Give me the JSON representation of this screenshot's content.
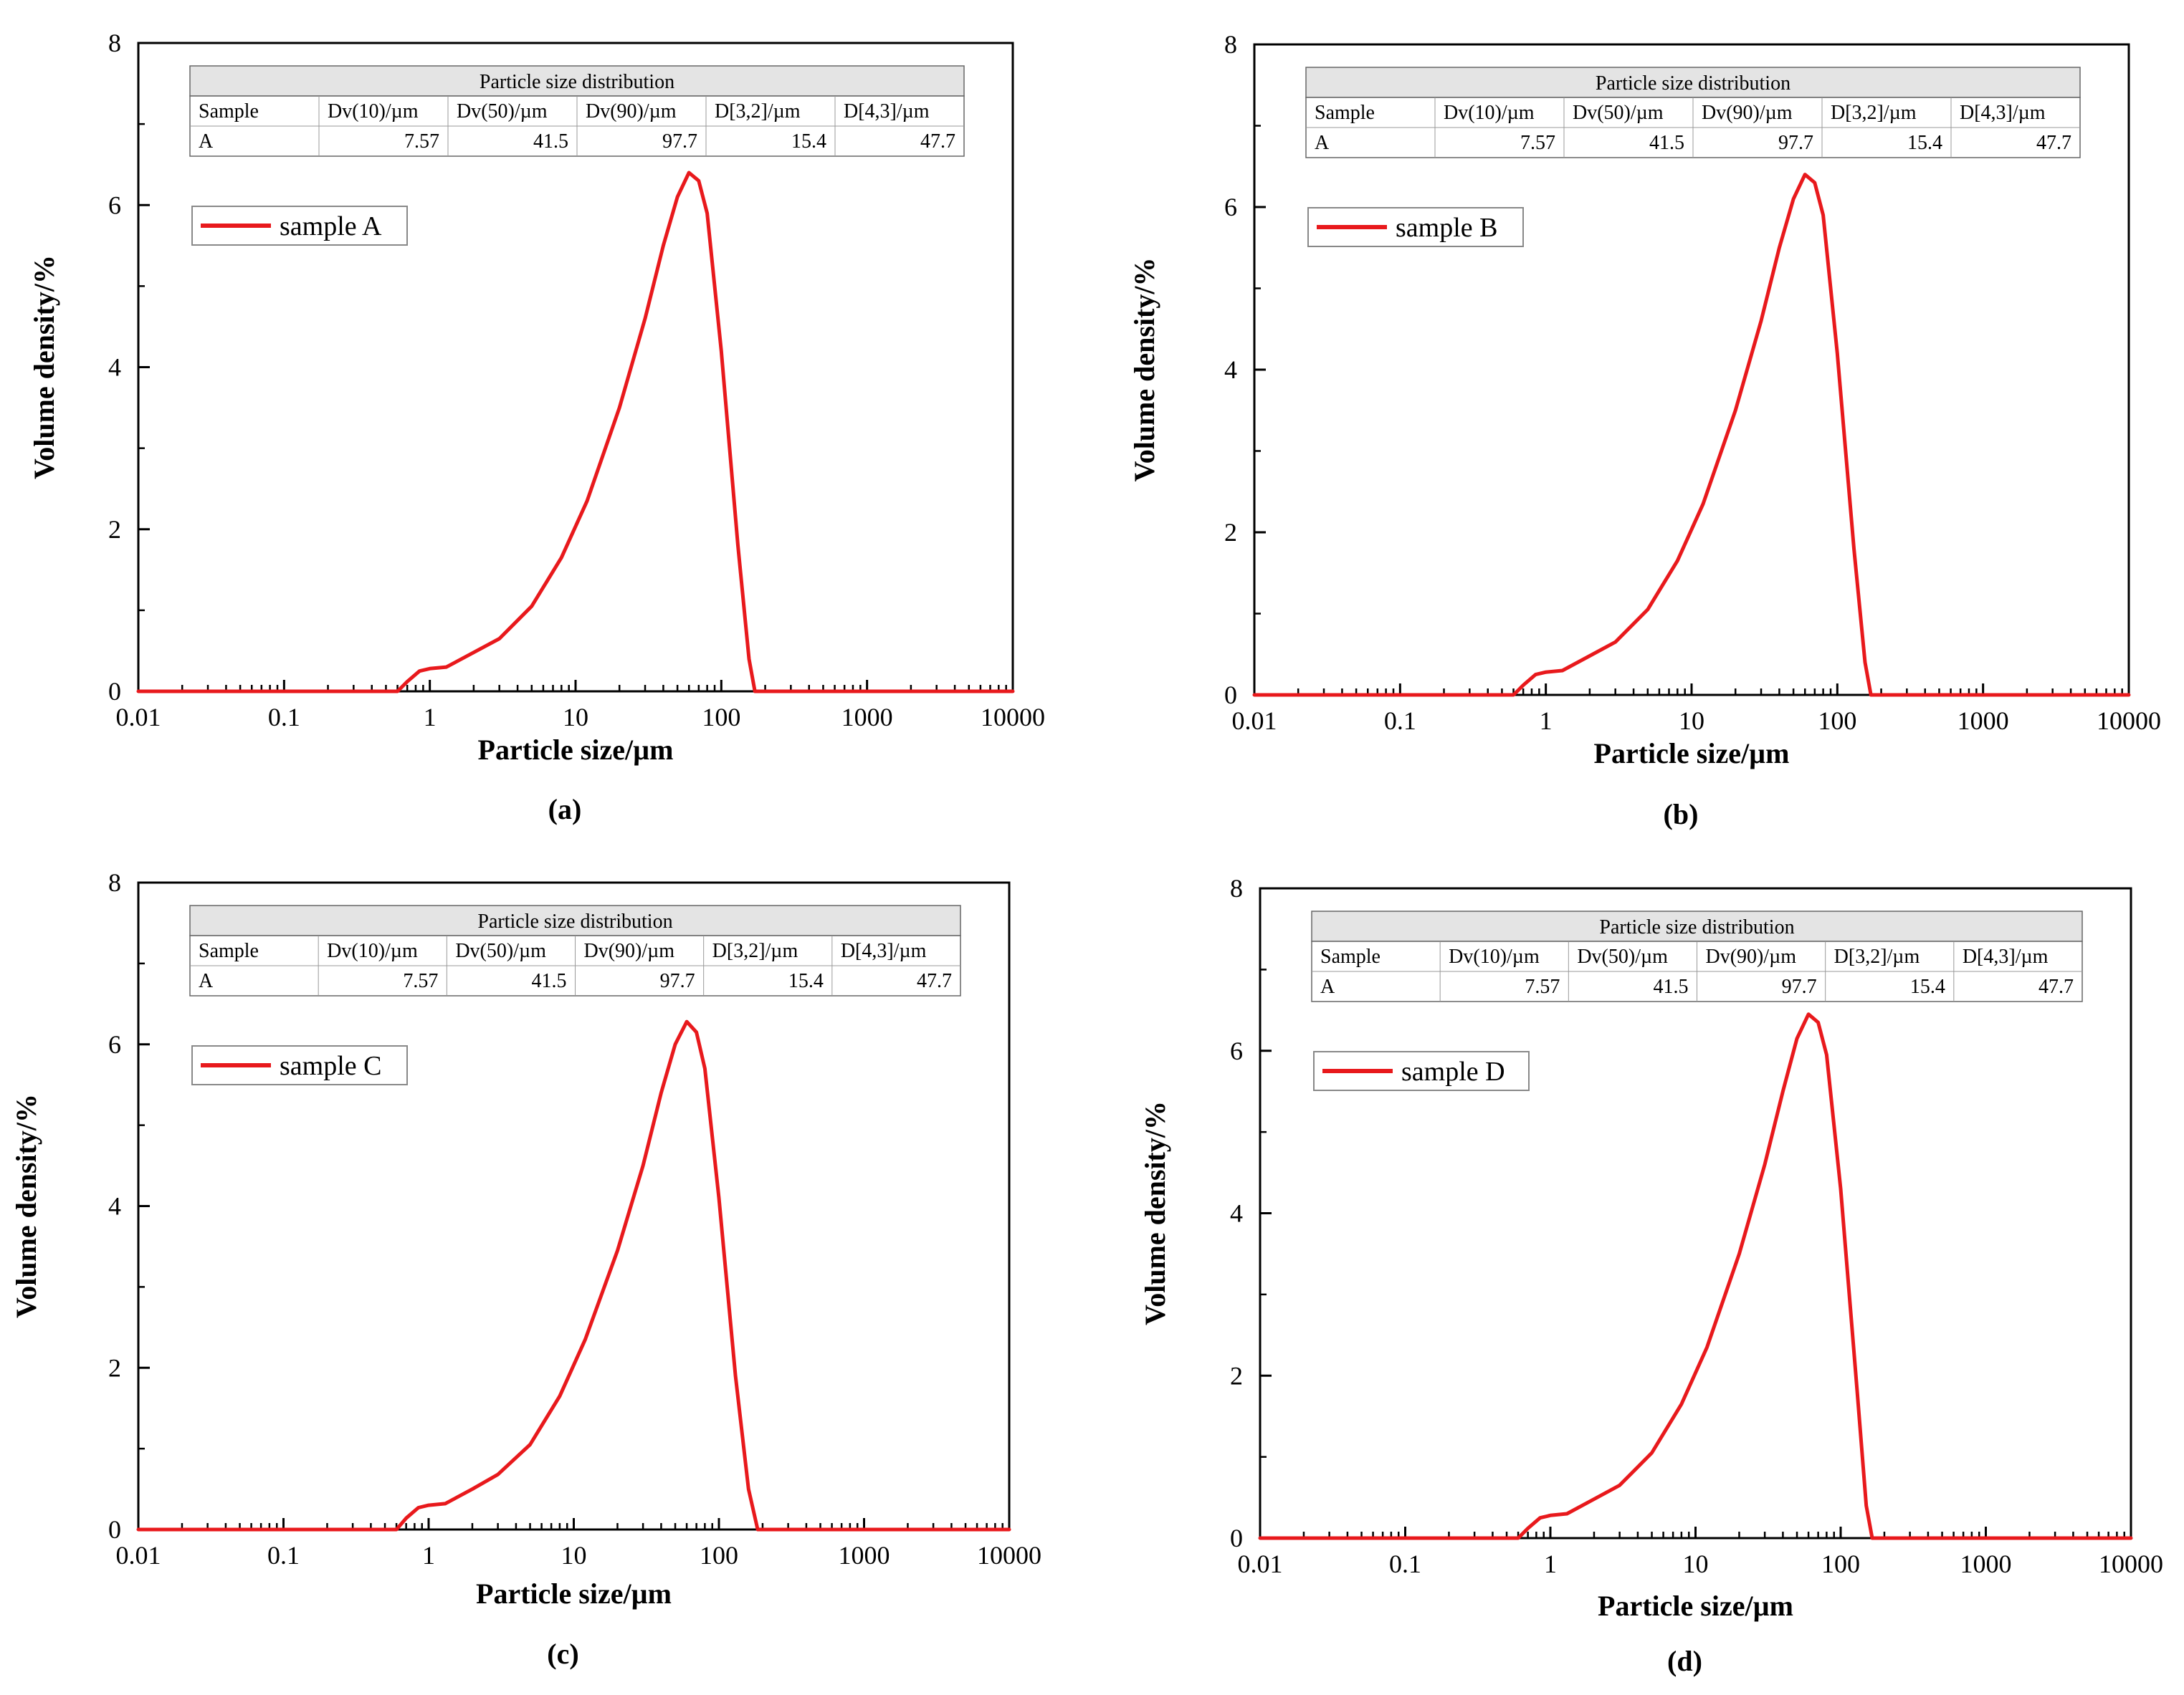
{
  "colors": {
    "series": "#e8191c",
    "axis": "#000000",
    "table_header": "#e4e4e4",
    "background": "#ffffff"
  },
  "chart_data": [
    {
      "type": "line",
      "xscale": "log",
      "panel_label": "(a)",
      "xlabel": "Particle size/µm",
      "ylabel": "Volume density/%",
      "xlim": [
        0.01,
        10000
      ],
      "ylim": [
        0,
        8
      ],
      "xticks": [
        "0.01",
        "0.1",
        "1",
        "10",
        "100",
        "1000",
        "10000"
      ],
      "yticks": [
        "0",
        "2",
        "4",
        "6",
        "8"
      ],
      "legend": "sample A",
      "table": {
        "title": "Particle size distribution",
        "columns": [
          "Sample",
          "Dv(10)/µm",
          "Dv(50)/µm",
          "Dv(90)/µm",
          "D[3,2]/µm",
          "D[4,3]/µm"
        ],
        "row": [
          "A",
          "7.57",
          "41.5",
          "97.7",
          "15.4",
          "47.7"
        ]
      },
      "series": [
        {
          "name": "sample A",
          "x": [
            0.01,
            0.6,
            0.7,
            0.85,
            1.0,
            1.3,
            2.0,
            3.0,
            5.0,
            8.0,
            12,
            20,
            30,
            40,
            50,
            60,
            70,
            80,
            100,
            130,
            155,
            170,
            200,
            10000
          ],
          "y": [
            0,
            0,
            0.12,
            0.25,
            0.28,
            0.3,
            0.48,
            0.65,
            1.05,
            1.65,
            2.35,
            3.5,
            4.6,
            5.5,
            6.1,
            6.4,
            6.3,
            5.9,
            4.2,
            1.8,
            0.4,
            0,
            0,
            0
          ]
        }
      ]
    },
    {
      "type": "line",
      "xscale": "log",
      "panel_label": "(b)",
      "xlabel": "Particle size/µm",
      "ylabel": "Volume density/%",
      "xlim": [
        0.01,
        10000
      ],
      "ylim": [
        0,
        8
      ],
      "xticks": [
        "0.01",
        "0.1",
        "1",
        "10",
        "100",
        "1000",
        "10000"
      ],
      "yticks": [
        "0",
        "2",
        "4",
        "6",
        "8"
      ],
      "legend": "sample B",
      "table": {
        "title": "Particle size distribution",
        "columns": [
          "Sample",
          "Dv(10)/µm",
          "Dv(50)/µm",
          "Dv(90)/µm",
          "D[3,2]/µm",
          "D[4,3]/µm"
        ],
        "row": [
          "A",
          "7.57",
          "41.5",
          "97.7",
          "15.4",
          "47.7"
        ]
      },
      "series": [
        {
          "name": "sample B",
          "x": [
            0.01,
            0.6,
            0.7,
            0.85,
            1.0,
            1.3,
            2.0,
            3.0,
            5.0,
            8.0,
            12,
            20,
            30,
            40,
            50,
            60,
            70,
            80,
            100,
            130,
            155,
            170,
            200,
            10000
          ],
          "y": [
            0,
            0,
            0.12,
            0.25,
            0.28,
            0.3,
            0.48,
            0.65,
            1.05,
            1.65,
            2.35,
            3.5,
            4.6,
            5.5,
            6.1,
            6.4,
            6.3,
            5.9,
            4.2,
            1.8,
            0.4,
            0,
            0,
            0
          ]
        }
      ]
    },
    {
      "type": "line",
      "xscale": "log",
      "panel_label": "(c)",
      "xlabel": "Particle size/µm",
      "ylabel": "Volume density/%",
      "xlim": [
        0.01,
        10000
      ],
      "ylim": [
        0,
        8
      ],
      "xticks": [
        "0.01",
        "0.1",
        "1",
        "10",
        "100",
        "1000",
        "10000"
      ],
      "yticks": [
        "0",
        "2",
        "4",
        "6",
        "8"
      ],
      "legend": "sample C",
      "table": {
        "title": "Particle size distribution",
        "columns": [
          "Sample",
          "Dv(10)/µm",
          "Dv(50)/µm",
          "Dv(90)/µm",
          "D[3,2]/µm",
          "D[4,3]/µm"
        ],
        "row": [
          "A",
          "7.57",
          "41.5",
          "97.7",
          "15.4",
          "47.7"
        ]
      },
      "series": [
        {
          "name": "sample C",
          "x": [
            0.01,
            0.6,
            0.7,
            0.85,
            1.0,
            1.3,
            2.0,
            3.0,
            5.0,
            8.0,
            12,
            20,
            30,
            40,
            50,
            60,
            70,
            80,
            100,
            130,
            160,
            185,
            200,
            10000
          ],
          "y": [
            0,
            0,
            0.14,
            0.27,
            0.3,
            0.32,
            0.5,
            0.68,
            1.05,
            1.65,
            2.35,
            3.45,
            4.5,
            5.4,
            6.0,
            6.28,
            6.15,
            5.7,
            4.1,
            1.9,
            0.5,
            0,
            0,
            0
          ]
        }
      ]
    },
    {
      "type": "line",
      "xscale": "log",
      "panel_label": "(d)",
      "xlabel": "Particle size/µm",
      "ylabel": "Volume density/%",
      "xlim": [
        0.01,
        10000
      ],
      "ylim": [
        0,
        8
      ],
      "xticks": [
        "0.01",
        "0.1",
        "1",
        "10",
        "100",
        "1000",
        "10000"
      ],
      "yticks": [
        "0",
        "2",
        "4",
        "6",
        "8"
      ],
      "legend": "sample D",
      "table": {
        "title": "Particle size distribution",
        "columns": [
          "Sample",
          "Dv(10)/µm",
          "Dv(50)/µm",
          "Dv(90)/µm",
          "D[3,2]/µm",
          "D[4,3]/µm"
        ],
        "row": [
          "A",
          "7.57",
          "41.5",
          "97.7",
          "15.4",
          "47.7"
        ]
      },
      "series": [
        {
          "name": "sample D",
          "x": [
            0.01,
            0.6,
            0.7,
            0.85,
            1.0,
            1.3,
            2.0,
            3.0,
            5.0,
            8.0,
            12,
            20,
            30,
            40,
            50,
            60,
            70,
            80,
            100,
            130,
            150,
            165,
            200,
            10000
          ],
          "y": [
            0,
            0,
            0.12,
            0.25,
            0.28,
            0.3,
            0.48,
            0.65,
            1.05,
            1.65,
            2.35,
            3.5,
            4.6,
            5.5,
            6.15,
            6.45,
            6.35,
            5.95,
            4.3,
            1.8,
            0.4,
            0,
            0,
            0
          ]
        }
      ]
    }
  ]
}
